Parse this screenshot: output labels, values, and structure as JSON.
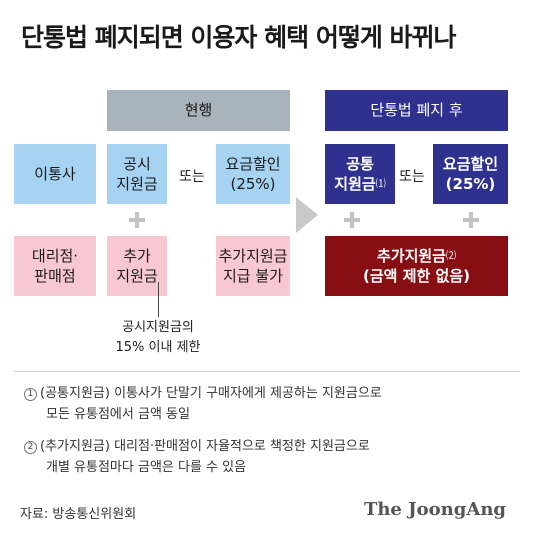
{
  "title": "단통법 폐지되면 이용자 혜택 어떻게 바뀌나",
  "headers": {
    "current": "현행",
    "after": "단통법 폐지 후"
  },
  "current": {
    "carrier_label": "이통사",
    "public_subsidy": [
      "공시",
      "지원금"
    ],
    "or": "또는",
    "rate_discount": [
      "요금할인",
      "(25%)"
    ],
    "dealer_label": [
      "대리점·",
      "판매점"
    ],
    "extra_subsidy": [
      "추가",
      "지원금"
    ],
    "no_extra_with_discount": [
      "추가지원금",
      "지급 불가"
    ]
  },
  "after": {
    "common_subsidy": [
      "공통",
      "지원금"
    ],
    "common_mark": "⑴",
    "or": "또는",
    "rate_discount": [
      "요금할인",
      "(25%)"
    ],
    "extra_subsidy": "추가지원금",
    "extra_mark": "⑵",
    "extra_note": "(금액 제한 없음)"
  },
  "limit_note": [
    "공시지원금의",
    "15% 이내 제한"
  ],
  "footnotes": [
    {
      "num": "1",
      "line1": "(공통지원금) 이통사가 단말기 구매자에게 제공하는 지원금으로",
      "line2": "모든 유통점에서 금액 동일"
    },
    {
      "num": "2",
      "line1": "(추가지원금) 대리점·판매점이 자율적으로 책정한 지원금으로",
      "line2": "개별 유통점마다 금액은 다를 수 있음"
    }
  ],
  "source": "자료: 방송통신위원회",
  "brand": "The JoongAng",
  "colors": {
    "header_gray": "#a9b3bb",
    "navy": "#2f318e",
    "light_blue": "#a6d3f2",
    "light_pink": "#f7c8cf",
    "maroon": "#870f13",
    "plus": "#c2c2c2"
  }
}
